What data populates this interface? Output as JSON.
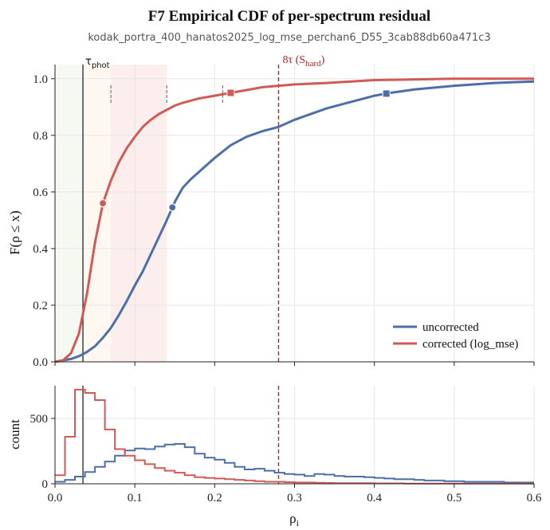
{
  "header": {
    "title": "F7    Empirical CDF of per-spectrum residual",
    "subtitle": "kodak_portra_400_hanatos2025_log_mse_perchan6_D55_3cab88db60a471c3"
  },
  "colors": {
    "uncorrected": "#4c6ea9",
    "corrected": "#d05a55",
    "threshold": "#b22222",
    "tau_line": "#333333"
  },
  "chart_data": [
    {
      "type": "line",
      "ylabel": "F(ρ ≤ x)",
      "xlim": [
        0.0,
        0.6
      ],
      "ylim": [
        0.0,
        1.05
      ],
      "yticks": [
        "0.0",
        "0.2",
        "0.4",
        "0.6",
        "0.8",
        "1.0"
      ],
      "grid": true,
      "legend_placement": "bottom-right",
      "annotations": {
        "tau_phot": {
          "label_main": "τ",
          "label_sub": "phot",
          "x": 0.035
        },
        "hard_threshold": {
          "label_main": "8τ (S",
          "label_sub": "hard",
          "label_end": ")",
          "x": 0.28
        },
        "dashed_markers_x": [
          0.07,
          0.14,
          0.21
        ]
      },
      "series": [
        {
          "name": "uncorrected",
          "x": [
            0.0,
            0.02,
            0.03,
            0.04,
            0.05,
            0.06,
            0.07,
            0.08,
            0.09,
            0.1,
            0.11,
            0.12,
            0.13,
            0.14,
            0.15,
            0.16,
            0.17,
            0.18,
            0.2,
            0.22,
            0.24,
            0.26,
            0.28,
            0.3,
            0.32,
            0.34,
            0.36,
            0.38,
            0.4,
            0.42,
            0.45,
            0.5,
            0.55,
            0.6
          ],
          "y": [
            0.0,
            0.01,
            0.02,
            0.035,
            0.055,
            0.085,
            0.12,
            0.165,
            0.215,
            0.27,
            0.32,
            0.38,
            0.44,
            0.5,
            0.565,
            0.615,
            0.645,
            0.67,
            0.72,
            0.765,
            0.795,
            0.815,
            0.83,
            0.855,
            0.875,
            0.895,
            0.91,
            0.925,
            0.94,
            0.95,
            0.962,
            0.975,
            0.985,
            0.99
          ],
          "median_x": 0.147,
          "p95_x": 0.415
        },
        {
          "name": "corrected (log_mse)",
          "x": [
            0.0,
            0.01,
            0.02,
            0.03,
            0.04,
            0.05,
            0.06,
            0.07,
            0.08,
            0.09,
            0.1,
            0.11,
            0.12,
            0.13,
            0.14,
            0.15,
            0.16,
            0.18,
            0.2,
            0.22,
            0.24,
            0.26,
            0.28,
            0.3,
            0.34,
            0.4,
            0.5,
            0.6
          ],
          "y": [
            0.0,
            0.005,
            0.03,
            0.1,
            0.24,
            0.42,
            0.56,
            0.64,
            0.705,
            0.755,
            0.795,
            0.83,
            0.855,
            0.875,
            0.89,
            0.905,
            0.915,
            0.93,
            0.94,
            0.95,
            0.96,
            0.97,
            0.975,
            0.98,
            0.985,
            0.995,
            1.0,
            1.0
          ],
          "median_x": 0.06,
          "p95_x": 0.22
        }
      ]
    },
    {
      "type": "histogram",
      "xlabel": "ρi",
      "xlabel_main": "ρ",
      "xlabel_sub": "i",
      "ylabel": "count",
      "xlim": [
        0.0,
        0.6
      ],
      "ylim": [
        0,
        750
      ],
      "xticks": [
        "0.0",
        "0.1",
        "0.2",
        "0.3",
        "0.4",
        "0.5",
        "0.6"
      ],
      "yticks": [
        "0",
        "500"
      ],
      "bin_width": 0.0125,
      "series": [
        {
          "name": "uncorrected",
          "values": [
            15,
            30,
            55,
            90,
            130,
            170,
            215,
            255,
            270,
            265,
            285,
            300,
            305,
            280,
            230,
            200,
            185,
            160,
            130,
            110,
            115,
            100,
            85,
            75,
            70,
            60,
            75,
            70,
            60,
            55,
            55,
            50,
            45,
            40,
            35,
            35,
            30,
            25,
            25,
            20,
            20,
            15,
            15,
            15,
            15,
            10,
            10,
            10
          ]
        },
        {
          "name": "corrected (log_mse)",
          "values": [
            65,
            360,
            720,
            695,
            640,
            415,
            265,
            215,
            180,
            150,
            120,
            100,
            85,
            65,
            50,
            45,
            40,
            35,
            30,
            25,
            20,
            15,
            15,
            12,
            10,
            10,
            8,
            6,
            5,
            5,
            5,
            4,
            3,
            3,
            3,
            2,
            2,
            2,
            2,
            2,
            1,
            1,
            1,
            1,
            1,
            1,
            1,
            1
          ]
        }
      ]
    }
  ]
}
